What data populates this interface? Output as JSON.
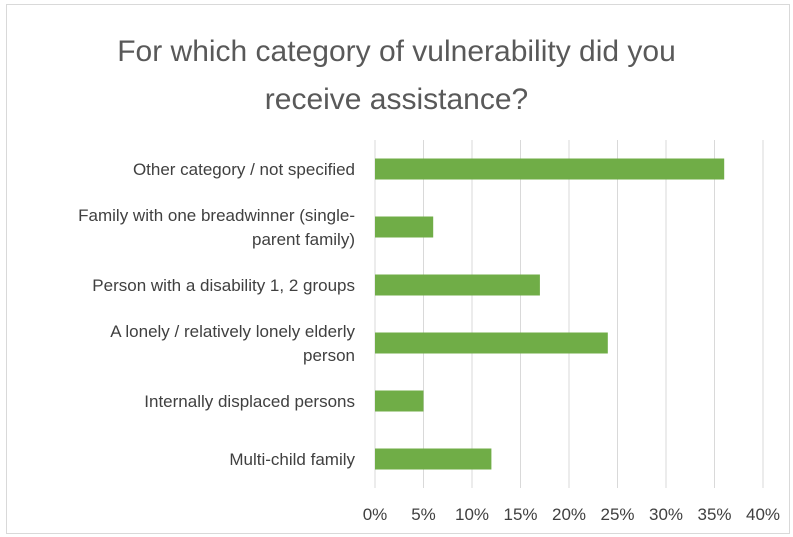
{
  "chart_data": {
    "type": "bar",
    "orientation": "horizontal",
    "title": "For which category of vulnerability did you\nreceive assistance?",
    "categories": [
      [
        "Other category / not specified"
      ],
      [
        "Family with one breadwinner (single-",
        "parent family)"
      ],
      [
        "Person with a disability 1, 2 groups"
      ],
      [
        "A lonely / relatively lonely elderly",
        "person"
      ],
      [
        "Internally displaced persons"
      ],
      [
        "Multi-child family"
      ]
    ],
    "values": [
      36,
      6,
      17,
      24,
      5,
      12
    ],
    "value_unit": "%",
    "xlim": [
      0,
      40
    ],
    "xticks": [
      "0%",
      "5%",
      "10%",
      "15%",
      "20%",
      "25%",
      "30%",
      "35%",
      "40%"
    ],
    "grid": "vertical",
    "bar_color": "#70ad47",
    "grid_color": "#d9d9d9",
    "text_color": "#404040",
    "title_color": "#595959"
  }
}
